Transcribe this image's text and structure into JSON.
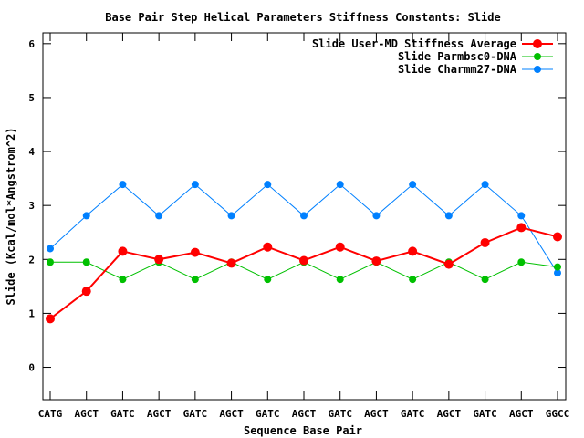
{
  "chart_data": {
    "type": "line",
    "title": "Base Pair Step Helical Parameters Stiffness Constants: Slide",
    "xlabel": "Sequence Base Pair",
    "ylabel": "Slide (Kcal/mol*Angstrom^2)",
    "categories": [
      "CATG",
      "AGCT",
      "GATC",
      "AGCT",
      "GATC",
      "AGCT",
      "GATC",
      "AGCT",
      "GATC",
      "AGCT",
      "GATC",
      "AGCT",
      "GATC",
      "AGCT",
      "GGCC"
    ],
    "ylim": [
      -0.6,
      6.2
    ],
    "yticks": [
      0,
      1,
      2,
      3,
      4,
      5,
      6
    ],
    "ytick_labels": [
      "0",
      "1",
      "2",
      "3",
      "4",
      "5",
      "6"
    ],
    "grid": false,
    "legend_position": "top-right",
    "series": [
      {
        "name": "Slide User-MD Stiffness Average",
        "color": "#ff0000",
        "values": [
          0.9,
          1.41,
          2.15,
          2.0,
          2.13,
          1.93,
          2.23,
          1.98,
          2.23,
          1.97,
          2.15,
          1.91,
          2.31,
          2.59,
          2.42
        ]
      },
      {
        "name": "Slide Parmbsc0-DNA",
        "color": "#00c000",
        "values": [
          1.95,
          1.95,
          1.63,
          1.95,
          1.63,
          1.95,
          1.63,
          1.95,
          1.63,
          1.95,
          1.63,
          1.95,
          1.63,
          1.95,
          1.86
        ]
      },
      {
        "name": "Slide Charmm27-DNA",
        "color": "#0080ff",
        "values": [
          2.2,
          2.81,
          3.39,
          2.81,
          3.39,
          2.81,
          3.39,
          2.81,
          3.39,
          2.81,
          3.39,
          2.81,
          3.39,
          2.81,
          1.75
        ]
      }
    ]
  }
}
